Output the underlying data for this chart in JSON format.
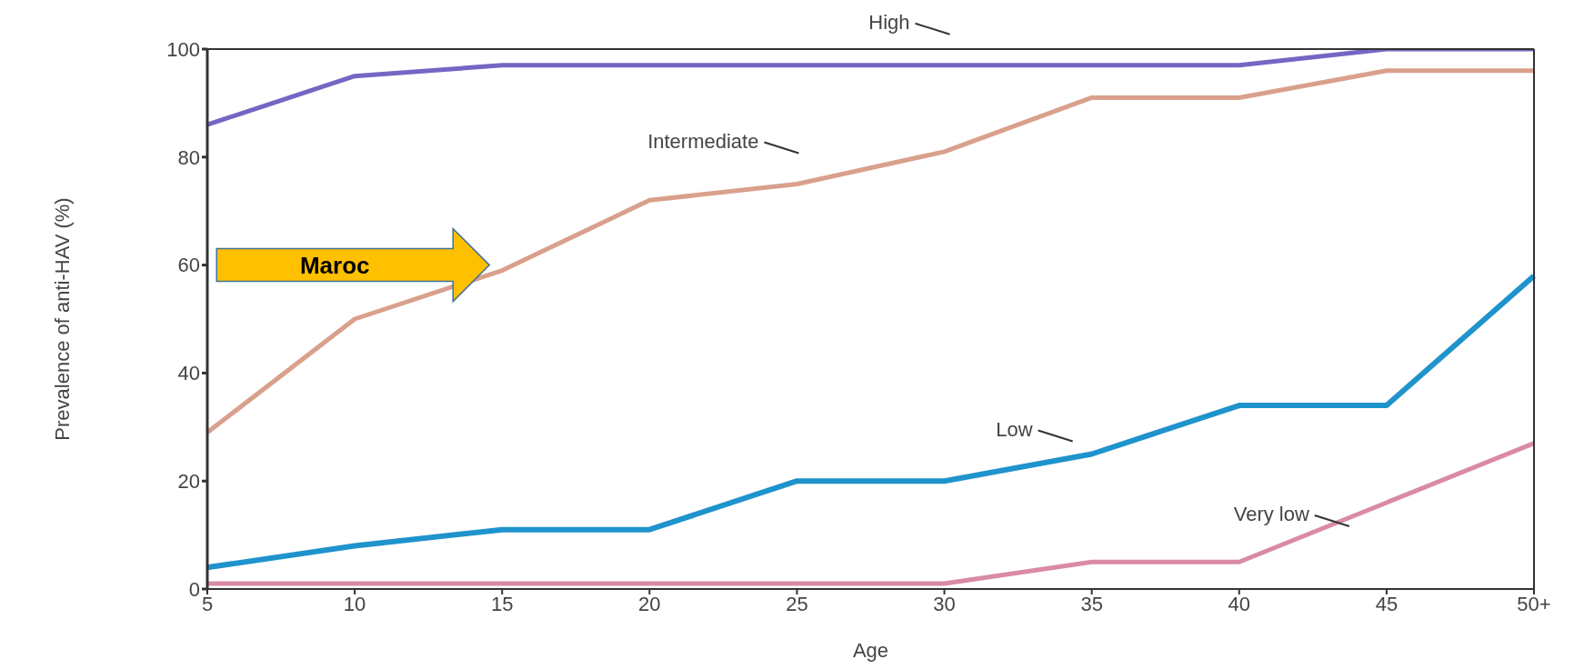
{
  "chart_data": {
    "type": "line",
    "xlabel": "Age",
    "ylabel": "Prevalence of anti-HAV (%)",
    "categories": [
      "5",
      "10",
      "15",
      "20",
      "25",
      "30",
      "35",
      "40",
      "45",
      "50+"
    ],
    "ylim": [
      0,
      100
    ],
    "yticks": [
      0,
      20,
      40,
      60,
      80,
      100
    ],
    "grid": false,
    "legend": false,
    "marker": "none",
    "series": [
      {
        "name": "High",
        "color": "#7566c4",
        "values": [
          86,
          95,
          97,
          97,
          97,
          97,
          97,
          97,
          100,
          100
        ]
      },
      {
        "name": "Intermediate",
        "color": "#d9a08c",
        "values": [
          29,
          50,
          59,
          72,
          75,
          81,
          91,
          91,
          96,
          96
        ]
      },
      {
        "name": "Low",
        "color": "#1f93cc",
        "values": [
          4,
          8,
          11,
          11,
          20,
          20,
          25,
          34,
          34,
          58
        ]
      },
      {
        "name": "Very low",
        "color": "#d98aa6",
        "values": [
          1,
          1,
          1,
          1,
          1,
          1,
          5,
          5,
          16,
          27
        ]
      }
    ],
    "annotations": [
      "Maroc"
    ]
  }
}
